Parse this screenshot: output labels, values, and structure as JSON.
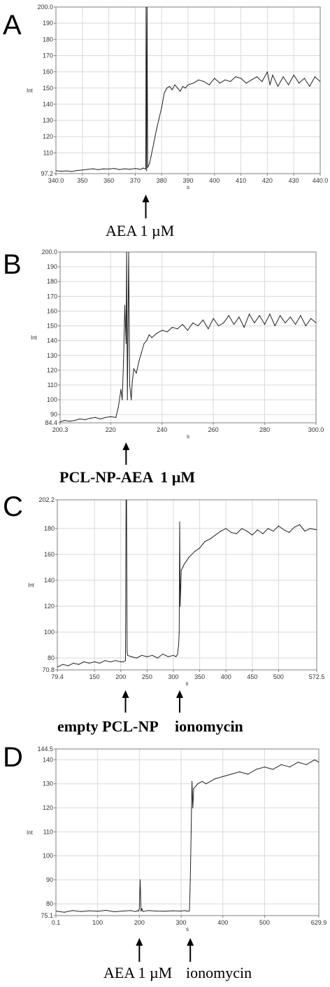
{
  "chart_data": [
    {
      "type": "line",
      "panel_label": "A",
      "xlabel": "s",
      "ylabel": "Int",
      "xlim": [
        340.0,
        440.0
      ],
      "ylim": [
        97.2,
        200.0
      ],
      "x_ticks": [
        {
          "v": 340,
          "t": "340.0"
        },
        {
          "v": 350,
          "t": "350"
        },
        {
          "v": 360,
          "t": "360"
        },
        {
          "v": 370,
          "t": "370"
        },
        {
          "v": 380,
          "t": "380"
        },
        {
          "v": 390,
          "t": "390"
        },
        {
          "v": 400,
          "t": "400"
        },
        {
          "v": 410,
          "t": "410"
        },
        {
          "v": 420,
          "t": "420"
        },
        {
          "v": 430,
          "t": "430"
        },
        {
          "v": 440,
          "t": "440.0"
        }
      ],
      "y_ticks": [
        {
          "v": 97.2,
          "t": "97.2"
        },
        {
          "v": 110,
          "t": "110"
        },
        {
          "v": 120,
          "t": "120"
        },
        {
          "v": 130,
          "t": "130"
        },
        {
          "v": 140,
          "t": "140"
        },
        {
          "v": 150,
          "t": "150"
        },
        {
          "v": 160,
          "t": "160"
        },
        {
          "v": 170,
          "t": "170"
        },
        {
          "v": 180,
          "t": "180"
        },
        {
          "v": 190,
          "t": "190"
        },
        {
          "v": 200,
          "t": "200.0"
        }
      ],
      "grid": true,
      "series": [
        {
          "x": [
            340,
            342,
            344,
            346,
            348,
            350,
            352,
            354,
            356,
            358,
            360,
            362,
            364,
            366,
            368,
            370,
            371,
            372,
            373,
            374,
            374.1,
            374.3,
            374.5,
            374.7,
            375,
            375.5,
            376,
            377,
            378,
            379,
            380,
            381,
            382,
            383,
            384,
            385,
            386,
            387,
            388,
            389,
            390,
            392,
            394,
            396,
            398,
            400,
            402,
            404,
            406,
            408,
            410,
            412,
            414,
            416,
            418,
            420,
            421,
            422,
            424,
            426,
            428,
            430,
            432,
            434,
            436,
            438,
            440
          ],
          "y": [
            99.0,
            98.6,
            98.9,
            98.5,
            99.1,
            99.4,
            99.8,
            100.2,
            99.6,
            100.1,
            100.0,
            100.4,
            99.7,
            100.2,
            99.9,
            100.3,
            100.1,
            99.8,
            100.6,
            100.0,
            200,
            99,
            200,
            101,
            102,
            104,
            108,
            116,
            124,
            131,
            138,
            147,
            150,
            151,
            149,
            152,
            150,
            148,
            151,
            150,
            152,
            153,
            155,
            154,
            152,
            156,
            153,
            155,
            154,
            157,
            156,
            153,
            155,
            157,
            154,
            160,
            152,
            158,
            151,
            157,
            152,
            158,
            153,
            156,
            151,
            157,
            154
          ]
        }
      ],
      "annotations": [
        {
          "text": "AEA 1 µM",
          "x": 374
        }
      ]
    },
    {
      "type": "line",
      "panel_label": "B",
      "xlabel": "s",
      "ylabel": "Int",
      "xlim": [
        200.3,
        300.0
      ],
      "ylim": [
        84.4,
        200.0
      ],
      "x_ticks": [
        {
          "v": 200.3,
          "t": "200.3"
        },
        {
          "v": 220,
          "t": "220"
        },
        {
          "v": 240,
          "t": "240"
        },
        {
          "v": 260,
          "t": "260"
        },
        {
          "v": 280,
          "t": "280"
        },
        {
          "v": 300,
          "t": "300.0"
        }
      ],
      "y_ticks": [
        {
          "v": 84.4,
          "t": "84.4"
        },
        {
          "v": 90,
          "t": "90"
        },
        {
          "v": 100,
          "t": "100"
        },
        {
          "v": 110,
          "t": "110"
        },
        {
          "v": 120,
          "t": "120"
        },
        {
          "v": 130,
          "t": "130"
        },
        {
          "v": 140,
          "t": "140"
        },
        {
          "v": 150,
          "t": "150"
        },
        {
          "v": 160,
          "t": "160"
        },
        {
          "v": 170,
          "t": "170"
        },
        {
          "v": 180,
          "t": "180"
        },
        {
          "v": 190,
          "t": "190"
        },
        {
          "v": 200,
          "t": "200.0"
        }
      ],
      "grid": true,
      "series": [
        {
          "x": [
            200.3,
            202,
            204,
            206,
            208,
            210,
            212,
            214,
            216,
            218,
            220,
            222,
            223,
            224,
            224.5,
            225,
            225.5,
            226,
            226.2,
            226.5,
            227,
            227.4,
            228,
            228.4,
            229,
            230,
            231,
            232,
            233,
            234,
            235,
            236,
            238,
            240,
            242,
            244,
            246,
            248,
            250,
            252,
            254,
            256,
            258,
            260,
            262,
            264,
            266,
            268,
            270,
            272,
            274,
            276,
            278,
            280,
            282,
            284,
            286,
            288,
            290,
            292,
            294,
            296,
            298,
            300
          ],
          "y": [
            85,
            86,
            85.5,
            86,
            87,
            86.5,
            87.5,
            88,
            87,
            88,
            88.5,
            88,
            95,
            107,
            100,
            126,
            164,
            138,
            200,
            100,
            200,
            110,
            100,
            112,
            121,
            118,
            126,
            132,
            138,
            140,
            144,
            142,
            145,
            147,
            146,
            149,
            148,
            151,
            147,
            152,
            150,
            154,
            148,
            155,
            150,
            152,
            157,
            151,
            156,
            149,
            158,
            152,
            157,
            151,
            158,
            150,
            157,
            152,
            156,
            151,
            157,
            150,
            155,
            152
          ]
        }
      ],
      "annotations": [
        {
          "text": "PCL-NP-AEA  1 µM",
          "x": 226
        }
      ]
    },
    {
      "type": "line",
      "panel_label": "C",
      "xlabel": "s",
      "ylabel": "Int",
      "xlim": [
        79.4,
        572.5
      ],
      "ylim": [
        70.8,
        202.2
      ],
      "x_ticks": [
        {
          "v": 79.4,
          "t": "79.4"
        },
        {
          "v": 150,
          "t": "150"
        },
        {
          "v": 200,
          "t": "200"
        },
        {
          "v": 250,
          "t": "250"
        },
        {
          "v": 300,
          "t": "300"
        },
        {
          "v": 350,
          "t": "350"
        },
        {
          "v": 400,
          "t": "400"
        },
        {
          "v": 450,
          "t": "450"
        },
        {
          "v": 500,
          "t": "500"
        },
        {
          "v": 572.5,
          "t": "572.5"
        }
      ],
      "y_ticks": [
        {
          "v": 70.8,
          "t": "70.8"
        },
        {
          "v": 80,
          "t": "80"
        },
        {
          "v": 100,
          "t": "100"
        },
        {
          "v": 120,
          "t": "120"
        },
        {
          "v": 140,
          "t": "140"
        },
        {
          "v": 160,
          "t": "160"
        },
        {
          "v": 180,
          "t": "180"
        },
        {
          "v": 202.2,
          "t": "202.2"
        }
      ],
      "grid": true,
      "series": [
        {
          "x": [
            79.4,
            90,
            100,
            110,
            120,
            130,
            140,
            150,
            160,
            170,
            180,
            190,
            200,
            205,
            209,
            210,
            211,
            212,
            213,
            220,
            230,
            240,
            250,
            260,
            270,
            280,
            290,
            300,
            305,
            308,
            310,
            311,
            312,
            313,
            315,
            318,
            320,
            325,
            330,
            340,
            350,
            360,
            370,
            380,
            390,
            400,
            410,
            420,
            430,
            440,
            450,
            460,
            470,
            480,
            490,
            500,
            510,
            520,
            530,
            540,
            550,
            560,
            572.5
          ],
          "y": [
            73,
            75,
            74,
            76,
            75,
            77,
            76,
            77,
            76,
            78,
            77,
            78,
            77,
            77,
            78,
            202,
            202,
            85,
            82,
            81,
            80,
            82,
            81,
            82,
            80,
            83,
            81,
            82,
            81,
            83,
            90,
            100,
            185,
            120,
            148,
            150,
            152,
            155,
            158,
            162,
            165,
            170,
            172,
            175,
            178,
            180,
            177,
            176,
            180,
            178,
            175,
            179,
            176,
            180,
            178,
            182,
            179,
            177,
            181,
            183,
            178,
            180,
            179
          ]
        }
      ],
      "annotations": [
        {
          "text": "empty PCL-NP",
          "x": 209
        },
        {
          "text": "ionomycin",
          "x": 312
        }
      ]
    },
    {
      "type": "line",
      "panel_label": "D",
      "xlabel": "s",
      "ylabel": "Int",
      "xlim": [
        0.1,
        629.9
      ],
      "ylim": [
        75.1,
        144.5
      ],
      "x_ticks": [
        {
          "v": 0.1,
          "t": "0.1"
        },
        {
          "v": 100,
          "t": "100"
        },
        {
          "v": 200,
          "t": "200"
        },
        {
          "v": 300,
          "t": "300"
        },
        {
          "v": 400,
          "t": "400"
        },
        {
          "v": 500,
          "t": "500"
        },
        {
          "v": 629.9,
          "t": "629.9"
        }
      ],
      "y_ticks": [
        {
          "v": 75.1,
          "t": "75.1"
        },
        {
          "v": 80,
          "t": "80"
        },
        {
          "v": 90,
          "t": "90"
        },
        {
          "v": 100,
          "t": "100"
        },
        {
          "v": 110,
          "t": "110"
        },
        {
          "v": 120,
          "t": "120"
        },
        {
          "v": 130,
          "t": "130"
        },
        {
          "v": 140,
          "t": "140"
        },
        {
          "v": 144.5,
          "t": "144.5"
        }
      ],
      "grid": true,
      "series": [
        {
          "x": [
            0.1,
            20,
            40,
            60,
            80,
            100,
            120,
            140,
            160,
            180,
            190,
            195,
            198,
            200,
            202,
            204,
            206,
            208,
            210,
            220,
            240,
            260,
            280,
            300,
            310,
            315,
            320,
            322,
            324,
            326,
            328,
            330,
            335,
            340,
            350,
            360,
            380,
            400,
            420,
            440,
            460,
            480,
            500,
            520,
            540,
            560,
            580,
            600,
            620,
            629.9
          ],
          "y": [
            77,
            76.5,
            77.2,
            76.8,
            77.1,
            76.9,
            77.3,
            76.7,
            77.0,
            77.2,
            76.8,
            77.1,
            77.0,
            78,
            90,
            77,
            78,
            77,
            76.8,
            77.2,
            77.0,
            76.9,
            77.1,
            77.0,
            77.2,
            76.9,
            77.1,
            90,
            110,
            131,
            120,
            128,
            129,
            130,
            131,
            130,
            132,
            133,
            134,
            135,
            134,
            136,
            137,
            136,
            138,
            137,
            139,
            138,
            140,
            139
          ]
        }
      ],
      "annotations": [
        {
          "text": "AEA 1 µM",
          "x": 200
        },
        {
          "text": "ionomycin",
          "x": 322
        }
      ]
    }
  ]
}
